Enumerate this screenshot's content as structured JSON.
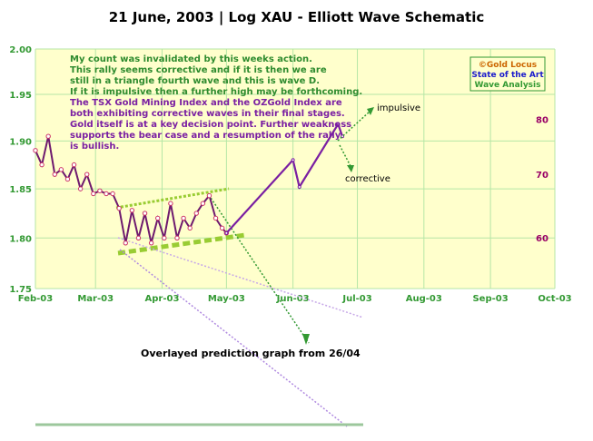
{
  "title": "21 June, 2003 | Log XAU - Elliott Wave Schematic",
  "notes": {
    "green_lines": [
      "My count was invalidated by this weeks action.",
      "This rally seems corrective and if it is then we are",
      "still in a triangle fourth wave and this is wave D.",
      "If it is impulsive then a further high may be forthcoming."
    ],
    "purple_lines": [
      "The TSX Gold Mining Index and the OZGold Index are",
      "both exhibiting corrective waves in their final stages.",
      "Gold itself is at a key decision point. Further weakness",
      "supports the bear case and a resumption of the rally",
      "is bullish."
    ]
  },
  "logo": {
    "line1": "©Gold Locus",
    "line2": "State of the Art",
    "line3": "Wave Analysis"
  },
  "annotations": {
    "impulsive": "impulsive",
    "corrective": "corrective",
    "overlay": "Overlayed prediction graph from 26/04"
  },
  "colors": {
    "plot_bg": "#ffffcc",
    "grid": "#b5e6a6",
    "price_line": "#6e1a6e",
    "forecast": "#7a1fa2",
    "green_axis": "#339933",
    "right_axis": "#990066"
  },
  "chart_data": {
    "type": "line",
    "title": "21 June, 2003 | Log XAU - Elliott Wave Schematic",
    "y_scale": "log",
    "ylim": [
      1.75,
      2.0
    ],
    "yticks": [
      "2.00",
      "1.95",
      "1.90",
      "1.85",
      "1.80",
      "1.75"
    ],
    "right_ticks": [
      "80",
      "70",
      "60"
    ],
    "x_ticks": [
      "Feb-03",
      "Mar-03",
      "Apr-03",
      "May-03",
      "Jun-03",
      "Jul-03",
      "Aug-03",
      "Sep-03",
      "Oct-03"
    ],
    "series": [
      {
        "x": [
          "2003-02-01",
          "2003-02-04",
          "2003-02-07",
          "2003-02-10",
          "2003-02-13",
          "2003-02-16",
          "2003-02-19",
          "2003-02-22",
          "2003-02-25",
          "2003-02-28",
          "2003-03-03",
          "2003-03-06",
          "2003-03-09",
          "2003-03-12",
          "2003-03-15",
          "2003-03-18",
          "2003-03-21",
          "2003-03-24",
          "2003-03-27",
          "2003-03-30",
          "2003-04-02",
          "2003-04-05",
          "2003-04-08",
          "2003-04-11",
          "2003-04-14",
          "2003-04-17",
          "2003-04-20",
          "2003-04-23",
          "2003-04-26",
          "2003-04-29",
          "2003-05-01"
        ],
        "values": [
          1.89,
          1.875,
          1.905,
          1.865,
          1.87,
          1.86,
          1.875,
          1.85,
          1.865,
          1.845,
          1.848,
          1.845,
          1.845,
          1.83,
          1.795,
          1.828,
          1.8,
          1.825,
          1.795,
          1.82,
          1.8,
          1.835,
          1.8,
          1.82,
          1.81,
          1.825,
          1.835,
          1.843,
          1.82,
          1.81,
          1.805
        ]
      },
      {
        "x": [
          "2003-05-01",
          "2003-06-01",
          "2003-06-04",
          "2003-06-22",
          "2003-06-24"
        ],
        "values": [
          1.805,
          1.88,
          1.852,
          1.918,
          1.905
        ]
      }
    ],
    "grid": true
  }
}
